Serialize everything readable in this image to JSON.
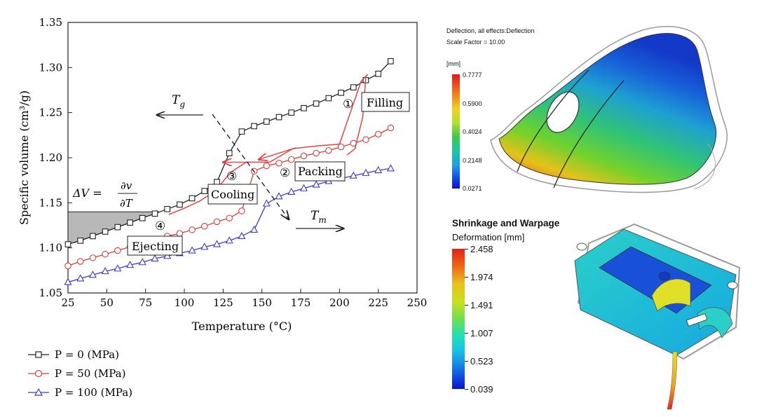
{
  "chart_data": {
    "type": "line",
    "xlabel": "Temperature (°C)",
    "ylabel": "Specific volume (cm³/g)",
    "xlim": [
      25,
      250
    ],
    "ylim": [
      1.05,
      1.35
    ],
    "xticks": [
      "25",
      "50",
      "75",
      "100",
      "125",
      "150",
      "175",
      "200",
      "225",
      "250"
    ],
    "yticks": [
      "1.05",
      "1.10",
      "1.15",
      "1.20",
      "1.25",
      "1.30",
      "1.35"
    ],
    "legend_position": "bottom-left",
    "series": [
      {
        "name": "P = 0 (MPa)",
        "color": "#222222",
        "marker": "square",
        "x": [
          25,
          33,
          41,
          49,
          57,
          65,
          73,
          81,
          89,
          97,
          105,
          113,
          121,
          129,
          137,
          145,
          153,
          161,
          169,
          177,
          185,
          193,
          201,
          209,
          217,
          225,
          233
        ],
        "y": [
          1.104,
          1.108,
          1.113,
          1.118,
          1.123,
          1.128,
          1.133,
          1.138,
          1.143,
          1.148,
          1.155,
          1.163,
          1.173,
          1.205,
          1.229,
          1.235,
          1.24,
          1.245,
          1.25,
          1.255,
          1.26,
          1.266,
          1.272,
          1.278,
          1.286,
          1.293,
          1.307
        ]
      },
      {
        "name": "P = 50 (MPa)",
        "color": "#e23b3b",
        "marker": "circle",
        "x": [
          25,
          33,
          41,
          49,
          57,
          65,
          73,
          81,
          89,
          97,
          105,
          113,
          121,
          129,
          137,
          145,
          153,
          161,
          169,
          177,
          185,
          193,
          201,
          209,
          217,
          225,
          233
        ],
        "y": [
          1.08,
          1.085,
          1.089,
          1.093,
          1.097,
          1.101,
          1.105,
          1.109,
          1.113,
          1.116,
          1.12,
          1.124,
          1.129,
          1.133,
          1.141,
          1.185,
          1.191,
          1.194,
          1.198,
          1.202,
          1.205,
          1.208,
          1.212,
          1.216,
          1.22,
          1.226,
          1.233
        ]
      },
      {
        "name": "P = 100 (MPa)",
        "color": "#3a3ad6",
        "marker": "triangle",
        "x": [
          25,
          33,
          41,
          49,
          57,
          65,
          73,
          81,
          89,
          97,
          105,
          113,
          121,
          129,
          137,
          145,
          153,
          161,
          169,
          177,
          185,
          193,
          201,
          209,
          217,
          225,
          233
        ],
        "y": [
          1.062,
          1.066,
          1.07,
          1.074,
          1.077,
          1.081,
          1.084,
          1.088,
          1.091,
          1.094,
          1.097,
          1.101,
          1.104,
          1.108,
          1.113,
          1.12,
          1.149,
          1.157,
          1.162,
          1.166,
          1.17,
          1.174,
          1.177,
          1.18,
          1.183,
          1.186,
          1.188
        ]
      }
    ],
    "process_path": {
      "color": "#e04545",
      "x": [
        205,
        210,
        215,
        217,
        218,
        214,
        200,
        185,
        170,
        155,
        144,
        140,
        131,
        127,
        120,
        110,
        100,
        90
      ],
      "y": [
        1.203,
        1.21,
        1.245,
        1.29,
        1.292,
        1.285,
        1.215,
        1.213,
        1.21,
        1.195,
        1.195,
        1.195,
        1.185,
        1.178,
        1.163,
        1.152,
        1.144,
        1.137
      ]
    },
    "annotations": {
      "filling": "Filling",
      "filling_num": "①",
      "packing": "Packing",
      "packing_num": "②",
      "cooling": "Cooling",
      "cooling_num": "③",
      "ejecting": "Ejecting",
      "ejecting_num": "④",
      "tg": "T",
      "tg_sub": "g",
      "tm": "T",
      "tm_sub": "m",
      "dv_lhs": "ΔV =",
      "dv_num": "∂v",
      "dv_den": "∂T"
    }
  },
  "legend": [
    {
      "label": "P = 0 (MPa)",
      "color": "#222222"
    },
    {
      "label": "P = 50 (MPa)",
      "color": "#e23b3b"
    },
    {
      "label": "P = 100 (MPa)",
      "color": "#3a3ad6"
    }
  ],
  "sim1": {
    "title": "Deflection, all effects:Deflection",
    "scale": "Scale Factor = 10.00",
    "unit": "[mm]",
    "ticks": [
      "0.7777",
      "0.5900",
      "0.4024",
      "0.2148",
      "0.0271"
    ]
  },
  "sim2": {
    "title": "Shrinkage and Warpage",
    "subtitle": "Deformation [mm]",
    "ticks": [
      "2.458",
      "1.974",
      "1.491",
      "1.007",
      "0.523",
      "0.039"
    ]
  }
}
